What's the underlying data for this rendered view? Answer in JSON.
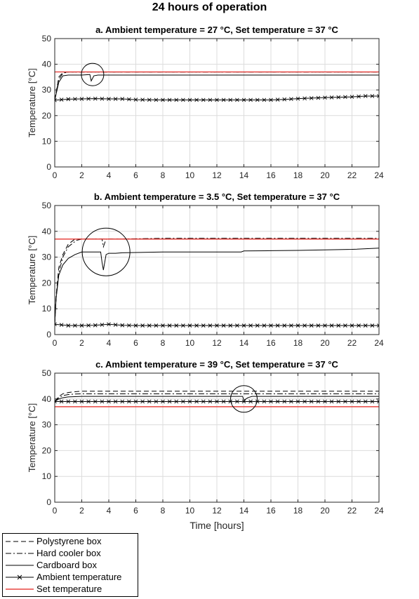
{
  "figure": {
    "title": "24 hours of operation",
    "xlabel": "Time [hours]",
    "colors": {
      "set": "#e3201b",
      "series": "#000000",
      "grid": "#dcdcdc"
    }
  },
  "legend": {
    "items": [
      {
        "label": "Polystyrene box",
        "style": "dashed"
      },
      {
        "label": "Hard cooler box",
        "style": "dashdot"
      },
      {
        "label": "Cardboard box",
        "style": "solid"
      },
      {
        "label": "Ambient temperature",
        "style": "solid-x"
      },
      {
        "label": "Set temperature",
        "style": "solid-red"
      }
    ]
  },
  "chart_data": [
    {
      "type": "line",
      "title": "a. Ambient temperature = 27 °C, Set temperature = 37 °C",
      "xlabel": "",
      "ylabel": "Temperature [°C]",
      "xlim": [
        0,
        24
      ],
      "ylim": [
        0,
        50
      ],
      "xticks": [
        0,
        2,
        4,
        6,
        8,
        10,
        12,
        14,
        16,
        18,
        20,
        22,
        24
      ],
      "yticks": [
        0,
        10,
        20,
        30,
        40,
        50
      ],
      "grid": true,
      "series": [
        {
          "name": "Polystyrene box",
          "style": "dashed",
          "x": [
            0,
            0.3,
            0.6,
            1,
            2,
            4,
            8,
            12,
            16,
            20,
            24
          ],
          "y": [
            26,
            35,
            36.8,
            37,
            37,
            37,
            37,
            37,
            37,
            37,
            37
          ]
        },
        {
          "name": "Hard cooler box",
          "style": "dashdot",
          "x": [
            0,
            0.3,
            0.6,
            1,
            2,
            4,
            8,
            12,
            16,
            20,
            24
          ],
          "y": [
            26,
            34,
            36.5,
            37,
            37,
            37,
            37,
            37,
            37,
            37,
            37
          ]
        },
        {
          "name": "Cardboard box",
          "style": "solid",
          "x": [
            0,
            0.3,
            0.6,
            1,
            2,
            2.6,
            2.7,
            2.9,
            3.2,
            4,
            8,
            12,
            16,
            20,
            24
          ],
          "y": [
            26,
            33,
            35.5,
            35.8,
            35.8,
            36,
            33.5,
            35.5,
            35.8,
            35.8,
            35.8,
            35.8,
            35.8,
            35.8,
            35.8
          ]
        },
        {
          "name": "Ambient temperature",
          "style": "solid-x",
          "x": [
            0,
            1,
            2,
            3,
            4,
            5,
            6,
            8,
            10,
            12,
            14,
            16,
            17,
            18,
            20,
            22,
            23,
            24
          ],
          "y": [
            26,
            26.4,
            26.5,
            26.6,
            26.5,
            26.5,
            26.2,
            26.1,
            26.1,
            26.1,
            26.1,
            26.1,
            26.3,
            26.6,
            27,
            27.3,
            27.6,
            27.6
          ]
        },
        {
          "name": "Set temperature",
          "style": "solid-red",
          "x": [
            0,
            24
          ],
          "y": [
            37,
            37
          ]
        }
      ],
      "annotation": {
        "type": "circle",
        "cx": 2.8,
        "cy": 36
      }
    },
    {
      "type": "line",
      "title": "b. Ambient temperature = 3.5 °C, Set temperature = 37 °C",
      "xlabel": "",
      "ylabel": "Temperature [°C]",
      "xlim": [
        0,
        24
      ],
      "ylim": [
        0,
        50
      ],
      "xticks": [
        0,
        2,
        4,
        6,
        8,
        10,
        12,
        14,
        16,
        18,
        20,
        22,
        24
      ],
      "yticks": [
        0,
        10,
        20,
        30,
        40,
        50
      ],
      "grid": true,
      "series": [
        {
          "name": "Polystyrene box",
          "style": "dashed",
          "x": [
            0,
            0.1,
            0.3,
            0.6,
            1,
            1.5,
            2,
            3,
            3.5,
            3.6,
            3.8,
            4,
            5,
            8,
            12,
            16,
            20,
            24
          ],
          "y": [
            4,
            15,
            26,
            31,
            35,
            37,
            37,
            37,
            37,
            37,
            37,
            37,
            37,
            37,
            37,
            37,
            37,
            37
          ]
        },
        {
          "name": "Hard cooler box",
          "style": "dashdot",
          "x": [
            0,
            0.1,
            0.3,
            0.6,
            1,
            1.6,
            2,
            3,
            3.5,
            3.6,
            3.8,
            4,
            5,
            8,
            12,
            16,
            20,
            24
          ],
          "y": [
            4,
            14,
            24,
            30,
            34,
            36.5,
            37,
            37,
            37,
            34,
            37,
            37,
            37,
            37.3,
            37.3,
            37.3,
            37.3,
            37.3
          ]
        },
        {
          "name": "Cardboard box",
          "style": "solid",
          "x": [
            0,
            0.1,
            0.3,
            0.6,
            1,
            1.5,
            2,
            3,
            3.4,
            3.5,
            3.6,
            3.8,
            4,
            4.5,
            5,
            6,
            8,
            12,
            13.8,
            14,
            16,
            18,
            20,
            22,
            24
          ],
          "y": [
            4,
            14,
            23,
            27,
            29.5,
            31,
            32,
            32,
            32,
            28,
            25,
            31,
            31.5,
            31.5,
            31.7,
            31.8,
            32,
            32,
            32,
            32.4,
            32.5,
            32.6,
            32.8,
            33,
            33.5
          ]
        },
        {
          "name": "Ambient temperature",
          "style": "solid-x",
          "x": [
            0,
            1,
            2,
            3,
            4,
            5,
            6,
            8,
            10,
            12,
            14,
            16,
            18,
            20,
            22,
            24
          ],
          "y": [
            4,
            3.5,
            3.5,
            3.6,
            4,
            3.6,
            3.5,
            3.5,
            3.5,
            3.5,
            3.5,
            3.5,
            3.5,
            3.5,
            3.5,
            3.5
          ]
        },
        {
          "name": "Set temperature",
          "style": "solid-red",
          "x": [
            0,
            24
          ],
          "y": [
            37,
            37
          ]
        }
      ],
      "annotation": {
        "type": "circle",
        "cx": 3.8,
        "cy": 32
      }
    },
    {
      "type": "line",
      "title": "c. Ambient temperature = 39 °C, Set temperature = 37 °C",
      "xlabel": "Time [hours]",
      "ylabel": "Temperature [°C]",
      "xlim": [
        0,
        24
      ],
      "ylim": [
        0,
        50
      ],
      "xticks": [
        0,
        2,
        4,
        6,
        8,
        10,
        12,
        14,
        16,
        18,
        20,
        22,
        24
      ],
      "yticks": [
        0,
        10,
        20,
        30,
        40,
        50
      ],
      "grid": true,
      "series": [
        {
          "name": "Polystyrene box",
          "style": "dashed",
          "x": [
            0,
            0.3,
            0.6,
            1,
            1.5,
            2,
            4,
            8,
            12,
            16,
            20,
            24
          ],
          "y": [
            39,
            41,
            42,
            42.5,
            42.8,
            43,
            43,
            43,
            43,
            43,
            43,
            43
          ]
        },
        {
          "name": "Hard cooler box",
          "style": "dashdot",
          "x": [
            0,
            0.3,
            0.6,
            1,
            1.5,
            2,
            4,
            8,
            12,
            16,
            20,
            24
          ],
          "y": [
            39,
            40.5,
            41.3,
            41.7,
            41.9,
            42,
            42,
            42,
            42,
            42,
            42,
            42
          ]
        },
        {
          "name": "Cardboard box",
          "style": "solid",
          "x": [
            0,
            0.3,
            0.6,
            1,
            2,
            4,
            8,
            12,
            13.8,
            13.9,
            14,
            14.3,
            14.6,
            15,
            16,
            20,
            24
          ],
          "y": [
            39,
            40,
            40.5,
            40.8,
            41,
            41,
            41,
            41,
            41,
            41,
            39.5,
            40.5,
            41,
            41,
            41,
            41,
            41
          ]
        },
        {
          "name": "Ambient temperature",
          "style": "solid-x",
          "x": [
            0,
            1,
            2,
            4,
            6,
            8,
            10,
            12,
            14,
            16,
            18,
            20,
            22,
            24
          ],
          "y": [
            39,
            39,
            39,
            39,
            39,
            39,
            39,
            39,
            39,
            39,
            39,
            39,
            39,
            39
          ]
        },
        {
          "name": "Set temperature",
          "style": "solid-red",
          "x": [
            0,
            24
          ],
          "y": [
            37,
            37
          ]
        }
      ],
      "annotation": {
        "type": "circle",
        "cx": 14,
        "cy": 40
      }
    }
  ]
}
